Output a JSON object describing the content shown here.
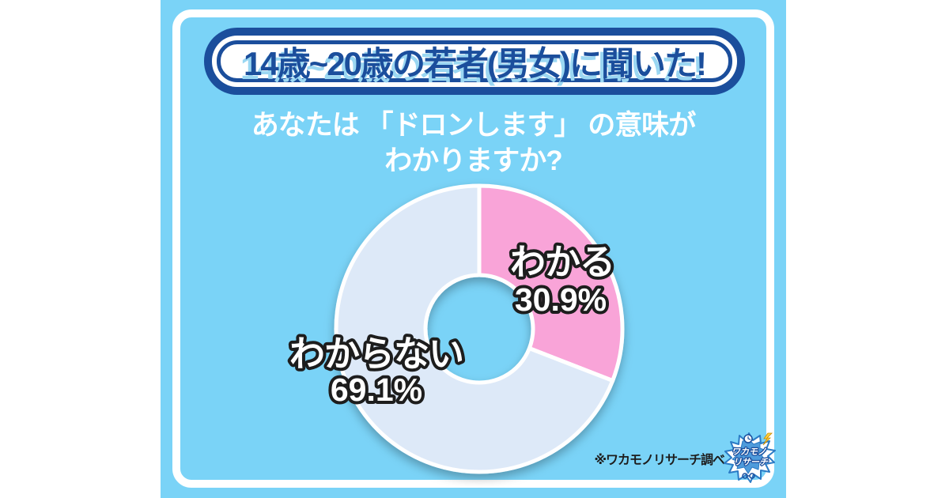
{
  "colors": {
    "page_bg": "#ffffff",
    "card_bg": "#7AD3F7",
    "accent_dark_blue": "#1B4E9C",
    "title_shadow_blue": "#9BD7F2",
    "label_outline": "#1d1d1d",
    "label_fill": "#ffffff"
  },
  "banner": {
    "title": "14歳~20歳の若者(男女)に聞いた!"
  },
  "question": {
    "line1": "あなたは 「ドロンします」 の意味が",
    "line2": "わかりますか?"
  },
  "chart_data": {
    "type": "pie",
    "donut": true,
    "title": "あなたは「ドロンします」の意味がわかりますか?",
    "categories": [
      "わかる",
      "わからない"
    ],
    "values": [
      30.9,
      69.1
    ],
    "colors": [
      "#F9A4D8",
      "#DDE9F8"
    ],
    "start_angle_deg": 0,
    "direction": "clockwise",
    "labels": [
      {
        "name": "わかる",
        "pct": "30.9%"
      },
      {
        "name": "わからない",
        "pct": "69.1%"
      }
    ]
  },
  "footnote": {
    "text": "※ワカモノリサーチ調べ"
  },
  "logo": {
    "line1": "ワカモノ",
    "line2": "リサーチ"
  }
}
